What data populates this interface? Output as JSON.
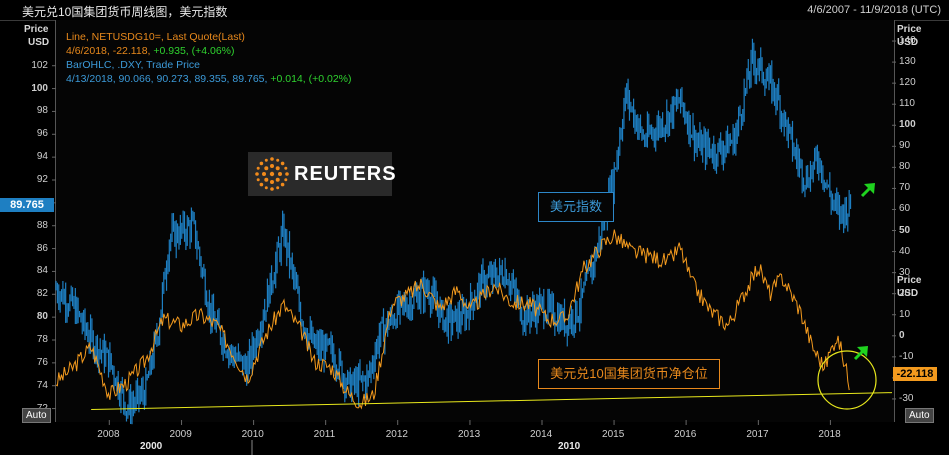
{
  "header": {
    "title": "美元兑10国集团货币周线图，美元指数",
    "date_range": "4/6/2007 - 11/9/2018 (UTC)"
  },
  "legend": {
    "line1": "Line, NETUSDG10=, Last Quote(Last)",
    "line2_prefix": "4/6/2018, -22.118, ",
    "line2_change": "+0.935, (+4.06%)",
    "line3": "BarOHLC, .DXY, Trade Price",
    "line4_prefix": "4/13/2018, 90.066, 90.273, 89.355, 89.765, ",
    "line4_change": "+0.014, (+0.02%)"
  },
  "axes": {
    "left_unit_1": "Price",
    "left_unit_2": "USD",
    "right_unit_1": "Price",
    "right_unit_2": "USD",
    "auto_left": "Auto",
    "auto_right": "Auto",
    "last_left": "89.765",
    "last_right": "-22.118"
  },
  "watermark": {
    "text": "REUTERS"
  },
  "annotations": {
    "dxy": "美元指数",
    "net": "美元兑10国集团货币净仓位"
  },
  "colors": {
    "dxy": "#1e7fc2",
    "net": "#f39a1e",
    "trend": "#e8e81c",
    "arrow": "#1fd31f"
  },
  "chart_data": {
    "type": "line",
    "title": "美元兑10国集团货币周线图，美元指数",
    "x_range": [
      "2007-04-06",
      "2018-11-09"
    ],
    "x_ticks": [
      "2008",
      "2009",
      "2010",
      "2011",
      "2012",
      "2013",
      "2014",
      "2015",
      "2016",
      "2017",
      "2018"
    ],
    "x_decades": [
      "2000",
      "2010"
    ],
    "y_left": {
      "label": "Price USD",
      "range": [
        71,
        106
      ],
      "ticks": [
        72,
        74,
        76,
        78,
        80,
        82,
        84,
        86,
        88,
        90,
        92,
        94,
        96,
        98,
        100,
        102
      ]
    },
    "y_right": {
      "label": "Price USD",
      "range": [
        -40,
        150
      ],
      "ticks": [
        -30,
        -20,
        -10,
        0,
        10,
        20,
        30,
        40,
        50,
        60,
        70,
        80,
        90,
        100,
        110,
        120,
        130,
        140
      ]
    },
    "series": [
      {
        "name": ".DXY",
        "axis": "left",
        "style": "bar-ohlc",
        "points": [
          [
            "2007-04-06",
            82.5
          ],
          [
            "2007-07-01",
            81.0
          ],
          [
            "2007-10-01",
            78.0
          ],
          [
            "2008-01-01",
            76.2
          ],
          [
            "2008-04-01",
            72.0
          ],
          [
            "2008-07-01",
            73.5
          ],
          [
            "2008-09-01",
            78.5
          ],
          [
            "2008-11-01",
            87.0
          ],
          [
            "2009-03-01",
            88.0
          ],
          [
            "2009-06-01",
            80.0
          ],
          [
            "2009-09-01",
            77.0
          ],
          [
            "2009-12-01",
            75.5
          ],
          [
            "2010-03-01",
            81.0
          ],
          [
            "2010-06-01",
            87.5
          ],
          [
            "2010-09-01",
            80.0
          ],
          [
            "2010-11-01",
            77.5
          ],
          [
            "2011-02-01",
            77.0
          ],
          [
            "2011-05-01",
            74.0
          ],
          [
            "2011-08-01",
            74.5
          ],
          [
            "2011-10-01",
            78.5
          ],
          [
            "2012-01-01",
            80.5
          ],
          [
            "2012-06-01",
            82.5
          ],
          [
            "2012-09-01",
            79.5
          ],
          [
            "2012-12-01",
            80.0
          ],
          [
            "2013-03-01",
            83.0
          ],
          [
            "2013-07-01",
            84.0
          ],
          [
            "2013-10-01",
            80.0
          ],
          [
            "2014-01-01",
            81.0
          ],
          [
            "2014-05-01",
            79.5
          ],
          [
            "2014-07-01",
            80.5
          ],
          [
            "2014-10-01",
            85.5
          ],
          [
            "2015-01-01",
            92.5
          ],
          [
            "2015-03-01",
            99.5
          ],
          [
            "2015-06-01",
            95.5
          ],
          [
            "2015-10-01",
            97.5
          ],
          [
            "2015-12-01",
            99.0
          ],
          [
            "2016-03-01",
            95.0
          ],
          [
            "2016-06-01",
            94.5
          ],
          [
            "2016-09-01",
            95.5
          ],
          [
            "2016-12-01",
            102.5
          ],
          [
            "2017-01-01",
            102.0
          ],
          [
            "2017-04-01",
            99.5
          ],
          [
            "2017-07-01",
            94.5
          ],
          [
            "2017-09-01",
            92.0
          ],
          [
            "2017-11-01",
            94.0
          ],
          [
            "2018-01-01",
            90.5
          ],
          [
            "2018-02-15",
            89.0
          ],
          [
            "2018-04-13",
            89.765
          ]
        ]
      },
      {
        "name": "NETUSDG10=",
        "axis": "right",
        "style": "line",
        "points": [
          [
            "2007-04-06",
            -22
          ],
          [
            "2007-07-01",
            -15
          ],
          [
            "2007-10-01",
            -5
          ],
          [
            "2008-01-01",
            -28
          ],
          [
            "2008-04-01",
            -22
          ],
          [
            "2008-07-01",
            -12
          ],
          [
            "2008-10-01",
            8
          ],
          [
            "2009-01-01",
            5
          ],
          [
            "2009-04-01",
            10
          ],
          [
            "2009-07-01",
            5
          ],
          [
            "2009-10-01",
            -10
          ],
          [
            "2009-12-01",
            -20
          ],
          [
            "2010-03-01",
            0
          ],
          [
            "2010-06-01",
            15
          ],
          [
            "2010-09-01",
            2
          ],
          [
            "2010-11-01",
            -12
          ],
          [
            "2011-02-01",
            -15
          ],
          [
            "2011-05-01",
            -28
          ],
          [
            "2011-07-01",
            -32
          ],
          [
            "2011-09-01",
            -28
          ],
          [
            "2011-12-01",
            15
          ],
          [
            "2012-03-01",
            20
          ],
          [
            "2012-05-01",
            25
          ],
          [
            "2012-08-01",
            13
          ],
          [
            "2012-11-01",
            22
          ],
          [
            "2013-01-01",
            12
          ],
          [
            "2013-05-01",
            24
          ],
          [
            "2013-08-01",
            16
          ],
          [
            "2013-11-01",
            15
          ],
          [
            "2014-02-01",
            8
          ],
          [
            "2014-05-01",
            8
          ],
          [
            "2014-08-01",
            32
          ],
          [
            "2014-11-01",
            43
          ],
          [
            "2015-01-01",
            48
          ],
          [
            "2015-04-01",
            40
          ],
          [
            "2015-07-01",
            38
          ],
          [
            "2015-10-01",
            35
          ],
          [
            "2015-12-01",
            42
          ],
          [
            "2016-02-01",
            25
          ],
          [
            "2016-05-01",
            12
          ],
          [
            "2016-08-01",
            5
          ],
          [
            "2016-11-01",
            22
          ],
          [
            "2017-01-01",
            33
          ],
          [
            "2017-03-01",
            20
          ],
          [
            "2017-05-01",
            28
          ],
          [
            "2017-08-01",
            12
          ],
          [
            "2017-10-01",
            -5
          ],
          [
            "2017-12-01",
            -15
          ],
          [
            "2018-02-01",
            0
          ],
          [
            "2018-03-01",
            -8
          ],
          [
            "2018-04-06",
            -22.118
          ]
        ]
      },
      {
        "name": "",
        "axis": "right",
        "style": "trendline",
        "points": [
          [
            "2007-10-01",
            -35
          ],
          [
            "2018-04-06",
            -27
          ]
        ]
      }
    ],
    "grid": false
  }
}
